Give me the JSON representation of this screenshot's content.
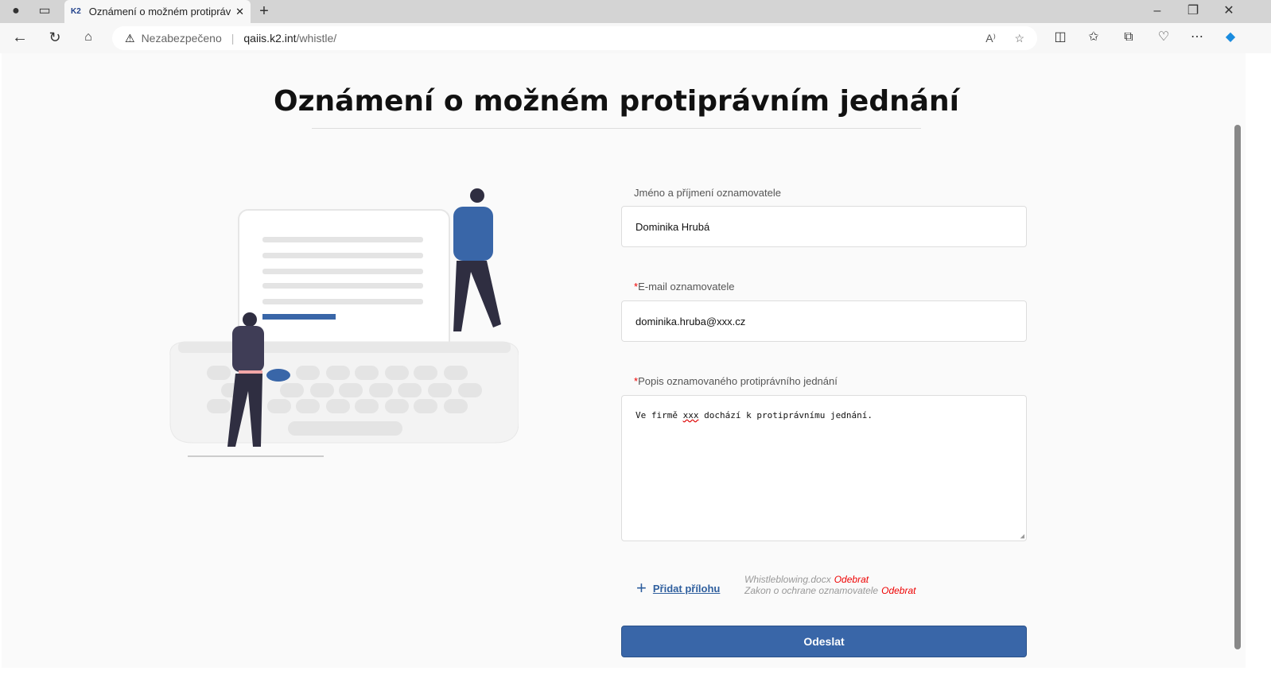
{
  "browser": {
    "tab_title": "Oznámení o možném protiprávním jednání",
    "tab_favicon": "K2",
    "security_label": "Nezabezpečeno",
    "url_host": "qaiis.k2.int",
    "url_path": "/whistle/"
  },
  "page": {
    "title": "Oznámení o možném protiprávním jednání",
    "form": {
      "name_label": "Jméno a příjmení oznamovatele",
      "name_value": "Dominika Hrubá",
      "email_required": "*",
      "email_label": "E-mail oznamovatele",
      "email_value": "dominika.hruba@xxx.cz",
      "desc_required": "*",
      "desc_label": "Popis oznamovaného protiprávního jednání",
      "desc_before": "Ve firmě ",
      "desc_misspelled": "xxx",
      "desc_after": " dochází k protiprávnímu jednání.",
      "add_attachment": "Přidat přílohu",
      "attachments": [
        {
          "name": "Whistleblowing.docx",
          "remove": "Odebrat"
        },
        {
          "name": "Zakon o ochrane oznamovatele",
          "remove": "Odebrat"
        }
      ],
      "submit": "Odeslat"
    }
  },
  "colors": {
    "accent": "#3966a8",
    "required": "#e00000",
    "link": "#2f5f9e"
  }
}
